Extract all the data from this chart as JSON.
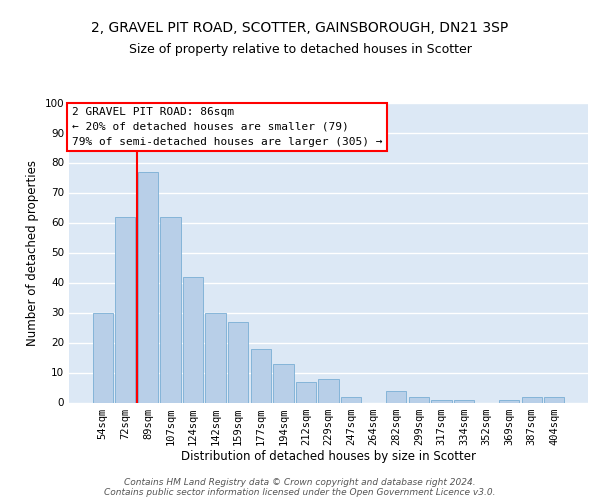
{
  "title1": "2, GRAVEL PIT ROAD, SCOTTER, GAINSBOROUGH, DN21 3SP",
  "title2": "Size of property relative to detached houses in Scotter",
  "xlabel": "Distribution of detached houses by size in Scotter",
  "ylabel": "Number of detached properties",
  "categories": [
    "54sqm",
    "72sqm",
    "89sqm",
    "107sqm",
    "124sqm",
    "142sqm",
    "159sqm",
    "177sqm",
    "194sqm",
    "212sqm",
    "229sqm",
    "247sqm",
    "264sqm",
    "282sqm",
    "299sqm",
    "317sqm",
    "334sqm",
    "352sqm",
    "369sqm",
    "387sqm",
    "404sqm"
  ],
  "values": [
    30,
    62,
    77,
    62,
    42,
    30,
    27,
    18,
    13,
    7,
    8,
    2,
    0,
    4,
    2,
    1,
    1,
    0,
    1,
    2,
    2
  ],
  "bar_color": "#b8cfe8",
  "bar_edge_color": "#7aaed4",
  "red_line_x": 2,
  "annotation_text": "2 GRAVEL PIT ROAD: 86sqm\n← 20% of detached houses are smaller (79)\n79% of semi-detached houses are larger (305) →",
  "annotation_box_color": "white",
  "annotation_box_edge_color": "red",
  "ylim": [
    0,
    100
  ],
  "yticks": [
    0,
    10,
    20,
    30,
    40,
    50,
    60,
    70,
    80,
    90,
    100
  ],
  "bg_color": "#dce8f5",
  "grid_color": "white",
  "footer": "Contains HM Land Registry data © Crown copyright and database right 2024.\nContains public sector information licensed under the Open Government Licence v3.0.",
  "title1_fontsize": 10,
  "title2_fontsize": 9,
  "xlabel_fontsize": 8.5,
  "ylabel_fontsize": 8.5,
  "tick_fontsize": 7.5,
  "footer_fontsize": 6.5,
  "annot_fontsize": 8
}
